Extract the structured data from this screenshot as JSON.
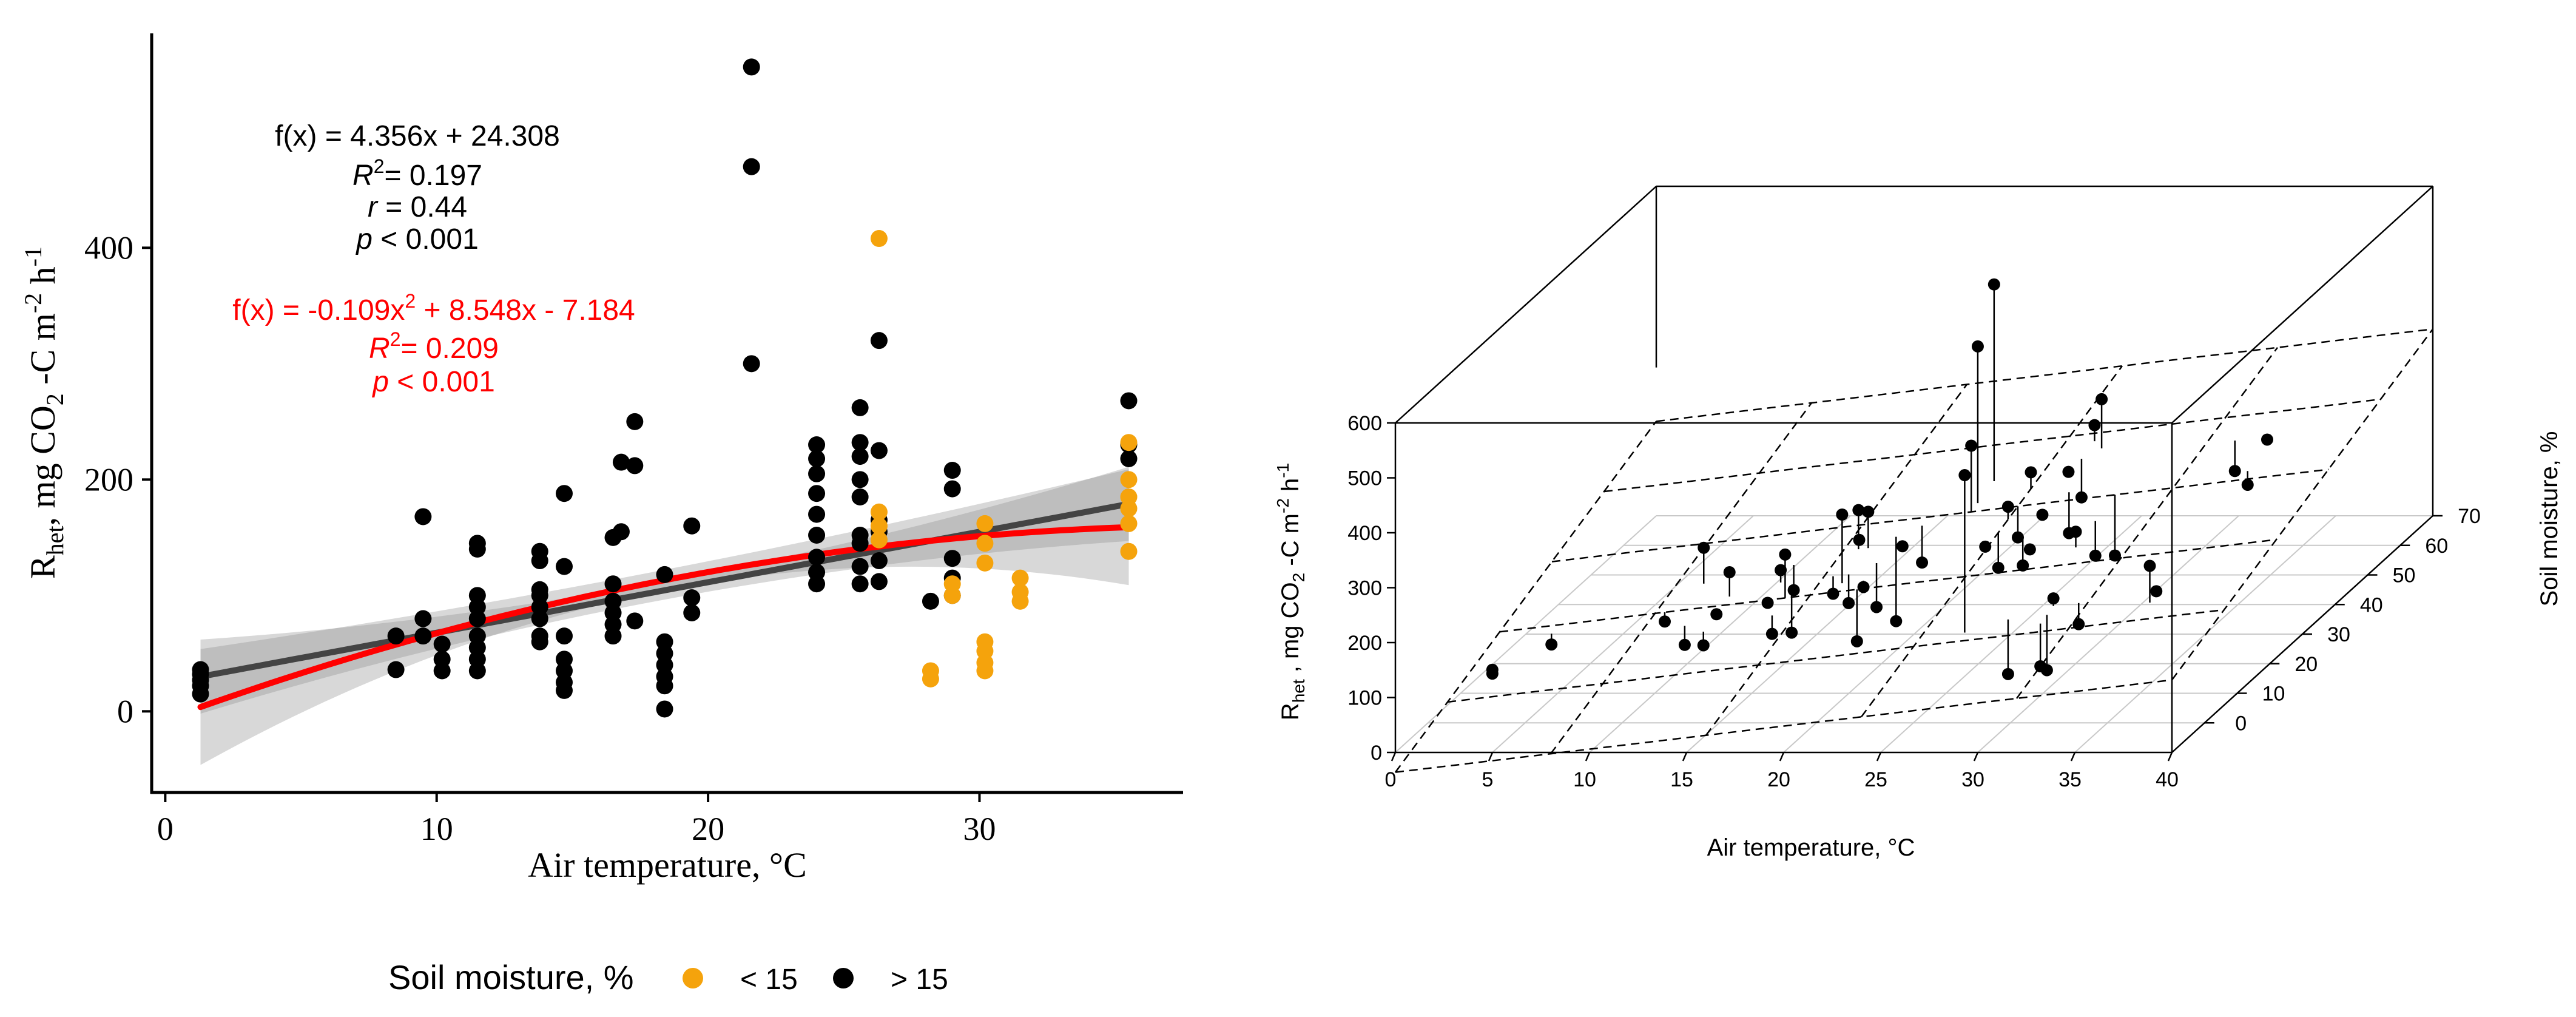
{
  "left_panel": {
    "equations": {
      "linear": {
        "f": "f(x) = 4.356x + 24.308",
        "r2_label": "R",
        "r2_value": "= 0.197",
        "r_label": "r",
        "r_value": "= 0.44",
        "p_label": "p",
        "p_value": "< 0.001"
      },
      "quadratic": {
        "f_prefix": "f(x) = -0.109x",
        "f_suffix": " + 8.548x - 7.184",
        "r2_label": "R",
        "r2_value": "= 0.209",
        "p_label": "p",
        "p_value": "< 0.001"
      }
    },
    "ylabel": {
      "main": "R",
      "sub": "het",
      "rest": ", mg CO",
      "co2_sub": "2",
      "rest2": " -C m",
      "sup1": "-2",
      "rest3": " h",
      "sup2": "-1"
    },
    "legend": {
      "title": "Soil moisture, %",
      "low_label": "< 15",
      "high_label": "> 15"
    },
    "colors": {
      "low": "#f5a30c",
      "high": "#000000",
      "linear_fit": "#444444",
      "quad_fit": "#ff0000",
      "ci": "#8e8e8e"
    }
  },
  "right_panel": {
    "ylabel": {
      "main": "R",
      "sub": "het",
      "rest": " , mg CO",
      "co2_sub": "2",
      "rest2": " -C m",
      "sup1": "-2",
      "rest3": " h",
      "sup2": "-1"
    }
  },
  "chart_data": [
    {
      "type": "scatter",
      "title": "",
      "xlabel": "Air temperature, °C",
      "ylabel": "Rhet , mg CO2 -C m-2 h-1",
      "xlim": [
        -0.5,
        37.5
      ],
      "ylim": [
        -70,
        585
      ],
      "x_ticks": [
        0,
        10,
        20,
        30
      ],
      "y_ticks": [
        0,
        200,
        400
      ],
      "legend": {
        "title": "Soil moisture, %",
        "entries": [
          "< 15",
          "> 15"
        ],
        "position": "bottom"
      },
      "series": [
        {
          "name": "> 15",
          "points": [
            [
              1.3,
              15
            ],
            [
              1.3,
              22
            ],
            [
              1.3,
              27
            ],
            [
              1.3,
              32
            ],
            [
              1.3,
              36
            ],
            [
              8.5,
              36
            ],
            [
              8.5,
              65
            ],
            [
              9.5,
              168
            ],
            [
              9.5,
              80
            ],
            [
              9.5,
              65
            ],
            [
              10.2,
              45
            ],
            [
              10.2,
              35
            ],
            [
              10.2,
              58
            ],
            [
              11.5,
              145
            ],
            [
              11.5,
              140
            ],
            [
              11.5,
              100
            ],
            [
              11.5,
              90
            ],
            [
              11.5,
              80
            ],
            [
              11.5,
              65
            ],
            [
              11.5,
              55
            ],
            [
              11.5,
              45
            ],
            [
              11.5,
              35
            ],
            [
              13.8,
              138
            ],
            [
              13.8,
              130
            ],
            [
              13.8,
              105
            ],
            [
              13.8,
              100
            ],
            [
              13.8,
              90
            ],
            [
              13.8,
              80
            ],
            [
              13.8,
              65
            ],
            [
              13.8,
              60
            ],
            [
              14.7,
              188
            ],
            [
              14.7,
              125
            ],
            [
              14.7,
              65
            ],
            [
              14.7,
              45
            ],
            [
              14.7,
              35
            ],
            [
              14.7,
              25
            ],
            [
              14.7,
              18
            ],
            [
              16.5,
              150
            ],
            [
              16.5,
              110
            ],
            [
              16.5,
              95
            ],
            [
              16.5,
              85
            ],
            [
              16.5,
              75
            ],
            [
              16.5,
              65
            ],
            [
              16.8,
              215
            ],
            [
              16.8,
              155
            ],
            [
              17.3,
              250
            ],
            [
              17.3,
              212
            ],
            [
              17.3,
              78
            ],
            [
              18.4,
              118
            ],
            [
              18.4,
              60
            ],
            [
              18.4,
              50
            ],
            [
              18.4,
              40
            ],
            [
              18.4,
              30
            ],
            [
              18.4,
              22
            ],
            [
              18.4,
              2
            ],
            [
              19.4,
              160
            ],
            [
              19.4,
              98
            ],
            [
              19.4,
              85
            ],
            [
              21.6,
              556
            ],
            [
              21.6,
              470
            ],
            [
              21.6,
              300
            ],
            [
              24,
              230
            ],
            [
              24,
              218
            ],
            [
              24,
              205
            ],
            [
              24,
              188
            ],
            [
              24,
              170
            ],
            [
              24,
              152
            ],
            [
              24,
              133
            ],
            [
              24,
              120
            ],
            [
              24,
              110
            ],
            [
              25.6,
              262
            ],
            [
              25.6,
              232
            ],
            [
              25.6,
              220
            ],
            [
              25.6,
              200
            ],
            [
              25.6,
              185
            ],
            [
              25.6,
              152
            ],
            [
              25.6,
              145
            ],
            [
              25.6,
              125
            ],
            [
              25.6,
              110
            ],
            [
              26.3,
              320
            ],
            [
              26.3,
              225
            ],
            [
              26.3,
              165
            ],
            [
              26.3,
              155
            ],
            [
              26.3,
              130
            ],
            [
              26.3,
              112
            ],
            [
              28.2,
              95
            ],
            [
              29,
              208
            ],
            [
              29,
              192
            ],
            [
              29,
              132
            ],
            [
              29,
              115
            ],
            [
              29,
              100
            ],
            [
              35.5,
              268
            ],
            [
              35.5,
              230
            ],
            [
              35.5,
              218
            ]
          ]
        },
        {
          "name": "< 15",
          "points": [
            [
              26.3,
              408
            ],
            [
              26.3,
              172
            ],
            [
              26.3,
              160
            ],
            [
              26.3,
              148
            ],
            [
              28.2,
              35
            ],
            [
              28.2,
              28
            ],
            [
              29,
              110
            ],
            [
              29,
              100
            ],
            [
              30.2,
              162
            ],
            [
              30.2,
              145
            ],
            [
              30.2,
              128
            ],
            [
              30.2,
              60
            ],
            [
              30.2,
              52
            ],
            [
              30.2,
              42
            ],
            [
              30.2,
              35
            ],
            [
              31.5,
              115
            ],
            [
              31.5,
              103
            ],
            [
              31.5,
              95
            ],
            [
              35.5,
              232
            ],
            [
              35.5,
              200
            ],
            [
              35.5,
              185
            ],
            [
              35.5,
              175
            ],
            [
              35.5,
              162
            ],
            [
              35.5,
              138
            ]
          ]
        }
      ],
      "fits": [
        {
          "name": "linear",
          "coefficients": {
            "slope": 4.356,
            "intercept": 24.308
          },
          "x_range": [
            1.3,
            35.5
          ]
        },
        {
          "name": "quadratic",
          "coefficients": {
            "a": -0.109,
            "b": 8.548,
            "c": -7.184
          },
          "x_range": [
            1.3,
            35.5
          ]
        }
      ]
    },
    {
      "type": "scatter",
      "subtype": "3d-scatter-with-regression-plane",
      "xlabel": "Air temperature, °C",
      "ylabel": "Soil moisture, %",
      "zlabel": "Rhet , mg CO2 -C m-2 h-1",
      "xlim": [
        0,
        40
      ],
      "ylim": [
        -10,
        70
      ],
      "zlim": [
        0,
        600
      ],
      "x_ticks": [
        0,
        5,
        10,
        15,
        20,
        25,
        30,
        35,
        40
      ],
      "y_ticks": [
        0,
        10,
        20,
        30,
        40,
        50,
        60,
        70
      ],
      "z_ticks": [
        0,
        100,
        200,
        300,
        400,
        500,
        600
      ],
      "points": [
        [
          1.3,
          12,
          32
        ],
        [
          1.3,
          12,
          25
        ],
        [
          3,
          20,
          35
        ],
        [
          8.5,
          22,
          66
        ],
        [
          9.5,
          28,
          168
        ],
        [
          10.2,
          18,
          45
        ],
        [
          11.5,
          24,
          145
        ],
        [
          11.5,
          20,
          90
        ],
        [
          11.5,
          16,
          55
        ],
        [
          13.8,
          26,
          138
        ],
        [
          13.8,
          22,
          100
        ],
        [
          13.8,
          30,
          80
        ],
        [
          14.7,
          22,
          188
        ],
        [
          14.7,
          18,
          65
        ],
        [
          14.7,
          24,
          35
        ],
        [
          16.5,
          34,
          150
        ],
        [
          16.5,
          26,
          95
        ],
        [
          16.8,
          32,
          215
        ],
        [
          17.3,
          24,
          250
        ],
        [
          17.3,
          32,
          212
        ],
        [
          17.3,
          26,
          78
        ],
        [
          18.4,
          24,
          118
        ],
        [
          18.4,
          28,
          60
        ],
        [
          18.4,
          22,
          30
        ],
        [
          18.4,
          34,
          2
        ],
        [
          19.4,
          30,
          160
        ],
        [
          19.4,
          36,
          98
        ],
        [
          21.6,
          45,
          556
        ],
        [
          21.6,
          40,
          470
        ],
        [
          21.6,
          38,
          300
        ],
        [
          24,
          42,
          230
        ],
        [
          24,
          35,
          205
        ],
        [
          24,
          28,
          170
        ],
        [
          24,
          38,
          133
        ],
        [
          24,
          32,
          110
        ],
        [
          25.6,
          52,
          262
        ],
        [
          25.6,
          44,
          220
        ],
        [
          25.6,
          36,
          185
        ],
        [
          25.6,
          48,
          152
        ],
        [
          25.6,
          30,
          125
        ],
        [
          26.3,
          50,
          320
        ],
        [
          26.3,
          8,
          408
        ],
        [
          26.3,
          28,
          165
        ],
        [
          26.3,
          40,
          130
        ],
        [
          28.2,
          10,
          35
        ],
        [
          29,
          26,
          208
        ],
        [
          29,
          32,
          132
        ],
        [
          29,
          38,
          100
        ],
        [
          30.2,
          12,
          162
        ],
        [
          30.2,
          8,
          60
        ],
        [
          30.2,
          10,
          42
        ],
        [
          31.5,
          12,
          115
        ],
        [
          33.5,
          48,
          200
        ],
        [
          35.5,
          46,
          268
        ],
        [
          35.5,
          10,
          232
        ],
        [
          35.5,
          40,
          218
        ],
        [
          35.5,
          12,
          175
        ]
      ]
    }
  ]
}
